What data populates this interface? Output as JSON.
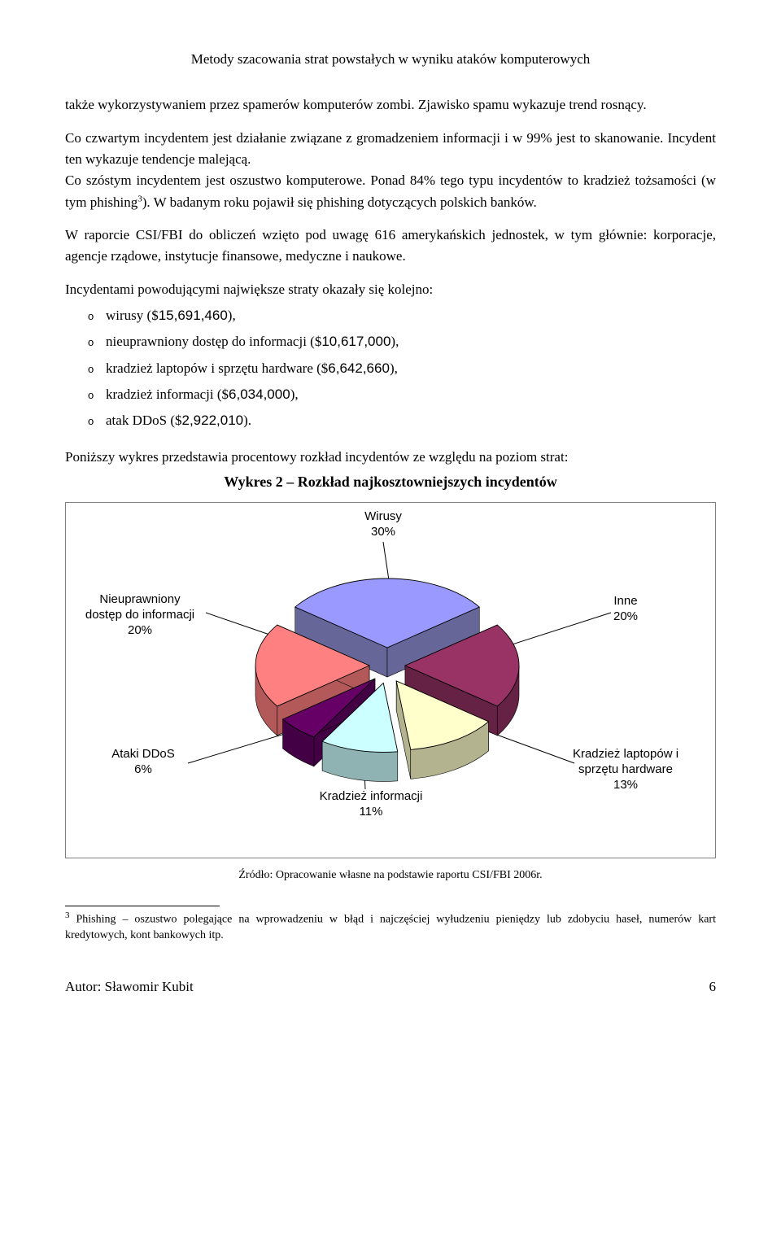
{
  "header": "Metody szacowania strat powstałych w wyniku ataków komputerowych",
  "para1": "także wykorzystywaniem przez spamerów komputerów zombi. Zjawisko spamu wykazuje trend rosnący.",
  "para2a": "Co czwartym incydentem jest działanie związane z gromadzeniem informacji i w 99% jest to skanowanie. Incydent ten wykazuje tendencje malejącą.",
  "para2b": "Co szóstym incydentem jest oszustwo komputerowe. Ponad 84% tego typu incydentów to kradzież tożsamości (w tym phishing",
  "para2c": "). W badanym roku pojawił się phishing dotyczących polskich banków.",
  "para3": "W raporcie CSI/FBI do obliczeń wzięto pod uwagę 616 amerykańskich jednostek, w tym głównie: korporacje, agencje rządowe, instytucje finansowe, medyczne i naukowe.",
  "para4": "Incydentami powodującymi największe straty okazały się kolejno:",
  "list": {
    "i1a": "wirusy ($",
    "i1b": "15,691,460",
    "i1c": "),",
    "i2a": "nieuprawniony dostęp do informacji ($",
    "i2b": "10,617,000",
    "i2c": "),",
    "i3a": "kradzież laptopów i sprzętu hardware ($",
    "i3b": "6,642,660",
    "i3c": "),",
    "i4a": "kradzież informacji ($",
    "i4b": "6,034,000",
    "i4c": "),",
    "i5a": "atak DDoS ($",
    "i5b": "2,922,010",
    "i5c": ")."
  },
  "para5": "Poniższy wykres przedstawia procentowy rozkład incydentów ze względu na poziom strat:",
  "chartTitle": "Wykres 2 – Rozkład najkosztowniejszych incydentów",
  "chart": {
    "labels": {
      "wirusy1": "Wirusy",
      "wirusy2": "30%",
      "nieu1": "Nieuprawniony",
      "nieu2": "dostęp do informacji",
      "nieu3": "20%",
      "inne1": "Inne",
      "inne2": "20%",
      "ddos1": "Ataki DDoS",
      "ddos2": "6%",
      "kinfo1": "Kradzież informacji",
      "kinfo2": "11%",
      "klap1": "Kradzież laptopów i",
      "klap2": "sprzętu hardware",
      "klap3": "13%"
    },
    "slices": [
      {
        "name": "wirusy",
        "value": 30,
        "topFill": "#9999ff",
        "sideFill": "#666699"
      },
      {
        "name": "inne",
        "value": 20,
        "topFill": "#993366",
        "sideFill": "#662244"
      },
      {
        "name": "laptopy",
        "value": 13,
        "topFill": "#ffffcc",
        "sideFill": "#b3b38f"
      },
      {
        "name": "kinfo",
        "value": 11,
        "topFill": "#ccffff",
        "sideFill": "#8fb3b3"
      },
      {
        "name": "ddos",
        "value": 6,
        "topFill": "#660066",
        "sideFill": "#440044"
      },
      {
        "name": "nieuprawniony",
        "value": 20,
        "topFill": "#ff8080",
        "sideFill": "#b35959"
      }
    ]
  },
  "source": "Źródło: Opracowanie własne na podstawie raportu CSI/FBI 2006r.",
  "footnoteNum": "3",
  "footnote": " Phishing – oszustwo polegające na wprowadzeniu w błąd i najczęściej wyłudzeniu pieniędzy lub zdobyciu haseł, numerów kart kredytowych, kont bankowych itp.",
  "footerLeft": "Autor: Sławomir Kubit",
  "footerRight": "6"
}
